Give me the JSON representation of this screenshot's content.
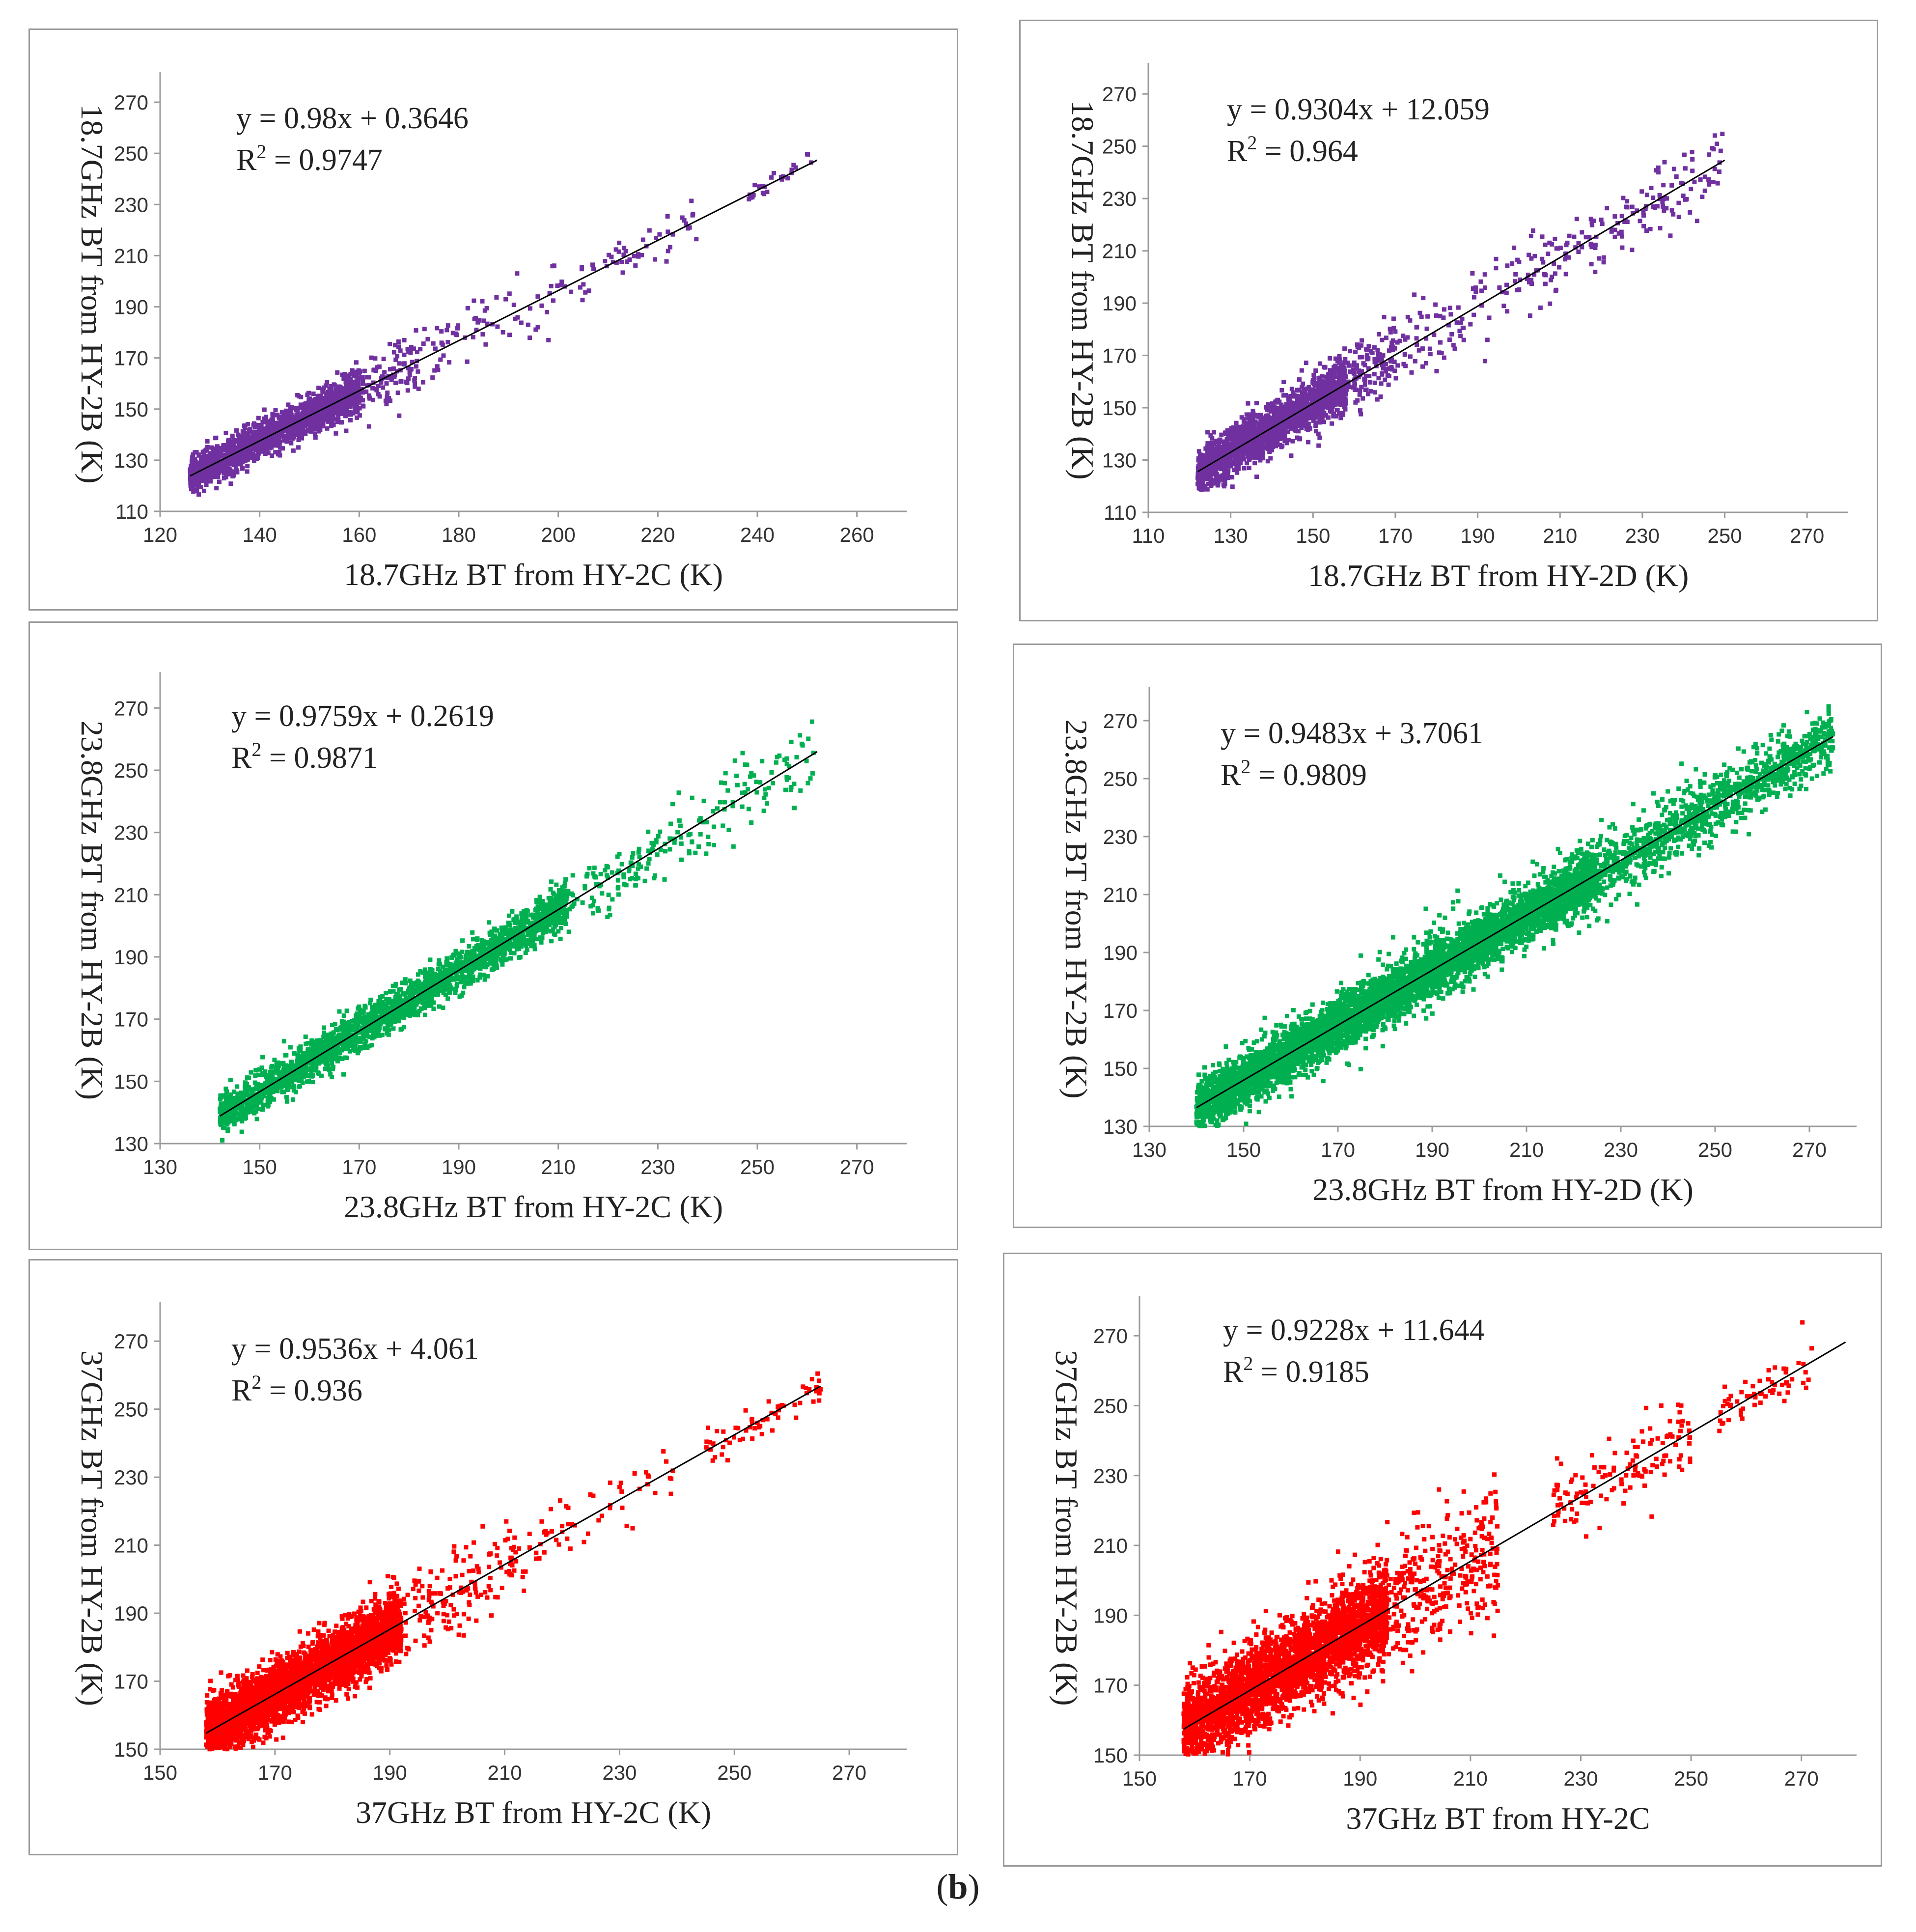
{
  "figure_label": "b",
  "colors": {
    "purple": "#7030a0",
    "green": "#00b050",
    "red": "#ff0000",
    "line": "#000000"
  },
  "chart_data": [
    {
      "id": "p1",
      "type": "scatter",
      "color": "#7030a0",
      "xlabel": "18.7GHz  BT  from  HY-2C (K)",
      "ylabel": "18.7GHz  BT  from  HY-2B (K)",
      "xticks": [
        120,
        140,
        160,
        180,
        200,
        220,
        240,
        260
      ],
      "yticks": [
        110,
        130,
        150,
        170,
        190,
        210,
        230,
        250,
        270
      ],
      "xlim": [
        120,
        270
      ],
      "ylim": [
        110,
        280
      ],
      "equation": "y = 0.98x + 0.3646",
      "r2_label": "R",
      "r2_value": " = 0.9747",
      "slope": 0.98,
      "intercept": 0.3646,
      "fit_x": [
        126,
        252
      ],
      "clusters": [
        {
          "x": [
            126,
            160
          ],
          "sd": 3.5,
          "n": 1700
        },
        {
          "x": [
            155,
            172
          ],
          "sd": 6,
          "n": 160
        },
        {
          "x": [
            172,
            200
          ],
          "sd": 6,
          "n": 70
        },
        {
          "x": [
            200,
            228
          ],
          "sd": 4,
          "n": 55
        },
        {
          "x": [
            238,
            252
          ],
          "sd": 2,
          "n": 25
        }
      ]
    },
    {
      "id": "p2",
      "type": "scatter",
      "color": "#7030a0",
      "xlabel": "18.7GHz  BT  from  HY-2D (K)",
      "ylabel": "18.7GHz  BT  from  HY-2B (K)",
      "xticks": [
        110,
        130,
        150,
        170,
        190,
        210,
        230,
        250,
        270
      ],
      "yticks": [
        110,
        130,
        150,
        170,
        190,
        210,
        230,
        250,
        270
      ],
      "xlim": [
        110,
        280
      ],
      "ylim": [
        110,
        280
      ],
      "equation": "y = 0.9304x + 12.059",
      "r2_label": "R",
      "r2_value": " = 0.964",
      "slope": 0.9304,
      "intercept": 12.059,
      "fit_x": [
        122,
        250
      ],
      "clusters": [
        {
          "x": [
            122,
            158
          ],
          "sd": 4.5,
          "n": 1700
        },
        {
          "x": [
            150,
            170
          ],
          "sd": 7,
          "n": 220
        },
        {
          "x": [
            170,
            210
          ],
          "sd": 8,
          "n": 130
        },
        {
          "x": [
            210,
            236
          ],
          "sd": 6,
          "n": 90
        },
        {
          "x": [
            236,
            250
          ],
          "sd": 7,
          "n": 40
        }
      ]
    },
    {
      "id": "p3",
      "type": "scatter",
      "color": "#00b050",
      "xlabel": "23.8GHz  BT  from  HY-2C (K)",
      "ylabel": "23.8GHz  BT  from  HY-2B (K)",
      "xticks": [
        130,
        150,
        170,
        190,
        210,
        230,
        250,
        270
      ],
      "yticks": [
        130,
        150,
        170,
        190,
        210,
        230,
        250,
        270
      ],
      "xlim": [
        130,
        280
      ],
      "ylim": [
        130,
        280
      ],
      "equation": "y = 0.9759x + 0.2619",
      "r2_label": "R",
      "r2_value": " = 0.9871",
      "slope": 0.9759,
      "intercept": 0.2619,
      "fit_x": [
        142,
        262
      ],
      "clusters": [
        {
          "x": [
            142,
            212
          ],
          "sd": 3.2,
          "n": 2400
        },
        {
          "x": [
            200,
            230
          ],
          "sd": 5,
          "n": 160
        },
        {
          "x": [
            230,
            262
          ],
          "sd": 6,
          "n": 110
        }
      ]
    },
    {
      "id": "p4",
      "type": "scatter",
      "color": "#00b050",
      "xlabel": "23.8GHz BT from HY-2D (K)",
      "ylabel": "23.8GHz BT from HY-2B (K)",
      "xticks": [
        130,
        150,
        170,
        190,
        210,
        230,
        250,
        270
      ],
      "yticks": [
        130,
        150,
        170,
        190,
        210,
        230,
        250,
        270
      ],
      "xlim": [
        130,
        280
      ],
      "ylim": [
        130,
        280
      ],
      "equation": "y = 0.9483x + 3.7061",
      "r2_label": "R",
      "r2_value": " = 0.9809",
      "slope": 0.9483,
      "intercept": 3.7061,
      "fit_x": [
        140,
        275
      ],
      "clusters": [
        {
          "x": [
            140,
            225
          ],
          "sd": 4.5,
          "n": 5200
        },
        {
          "x": [
            220,
            275
          ],
          "sd": 5,
          "n": 1100
        },
        {
          "x": [
            145,
            260
          ],
          "sd": 10,
          "n": 250
        }
      ]
    },
    {
      "id": "p5",
      "type": "scatter",
      "color": "#ff0000",
      "xlabel": "37GHz  BT  from  HY-2C (K)",
      "ylabel": "37GHz  BT  from  HY-2B (K)",
      "xticks": [
        150,
        170,
        190,
        210,
        230,
        250,
        270
      ],
      "yticks": [
        150,
        170,
        190,
        210,
        230,
        250,
        270
      ],
      "xlim": [
        150,
        280
      ],
      "ylim": [
        150,
        280
      ],
      "equation": "y = 0.9536x + 4.061",
      "r2_label": "R",
      "r2_value": " = 0.936",
      "slope": 0.9536,
      "intercept": 4.061,
      "fit_x": [
        158,
        265
      ],
      "clusters": [
        {
          "x": [
            158,
            192
          ],
          "sd": 4.5,
          "n": 3400
        },
        {
          "x": [
            185,
            212
          ],
          "sd": 6,
          "n": 200
        },
        {
          "x": [
            212,
            240
          ],
          "sd": 5,
          "n": 60
        },
        {
          "x": [
            245,
            265
          ],
          "sd": 3,
          "n": 60
        }
      ]
    },
    {
      "id": "p6",
      "type": "scatter",
      "color": "#ff0000",
      "xlabel": "37GHz  BT  from  HY-2C",
      "ylabel": "37GHz  BT  from  HY-2B (K)",
      "xticks": [
        150,
        170,
        190,
        210,
        230,
        250,
        270
      ],
      "yticks": [
        150,
        170,
        190,
        210,
        230,
        250,
        270
      ],
      "xlim": [
        150,
        280
      ],
      "ylim": [
        150,
        280
      ],
      "equation": "y = 0.9228x + 11.644",
      "r2_label": "R",
      "r2_value": " = 0.9185",
      "slope": 0.9228,
      "intercept": 11.644,
      "fit_x": [
        158,
        278
      ],
      "clusters": [
        {
          "x": [
            158,
            195
          ],
          "sd": 6,
          "n": 3000
        },
        {
          "x": [
            185,
            215
          ],
          "sd": 9,
          "n": 450
        },
        {
          "x": [
            225,
            250
          ],
          "sd": 6,
          "n": 130
        },
        {
          "x": [
            255,
            272
          ],
          "sd": 3,
          "n": 60
        }
      ]
    }
  ]
}
